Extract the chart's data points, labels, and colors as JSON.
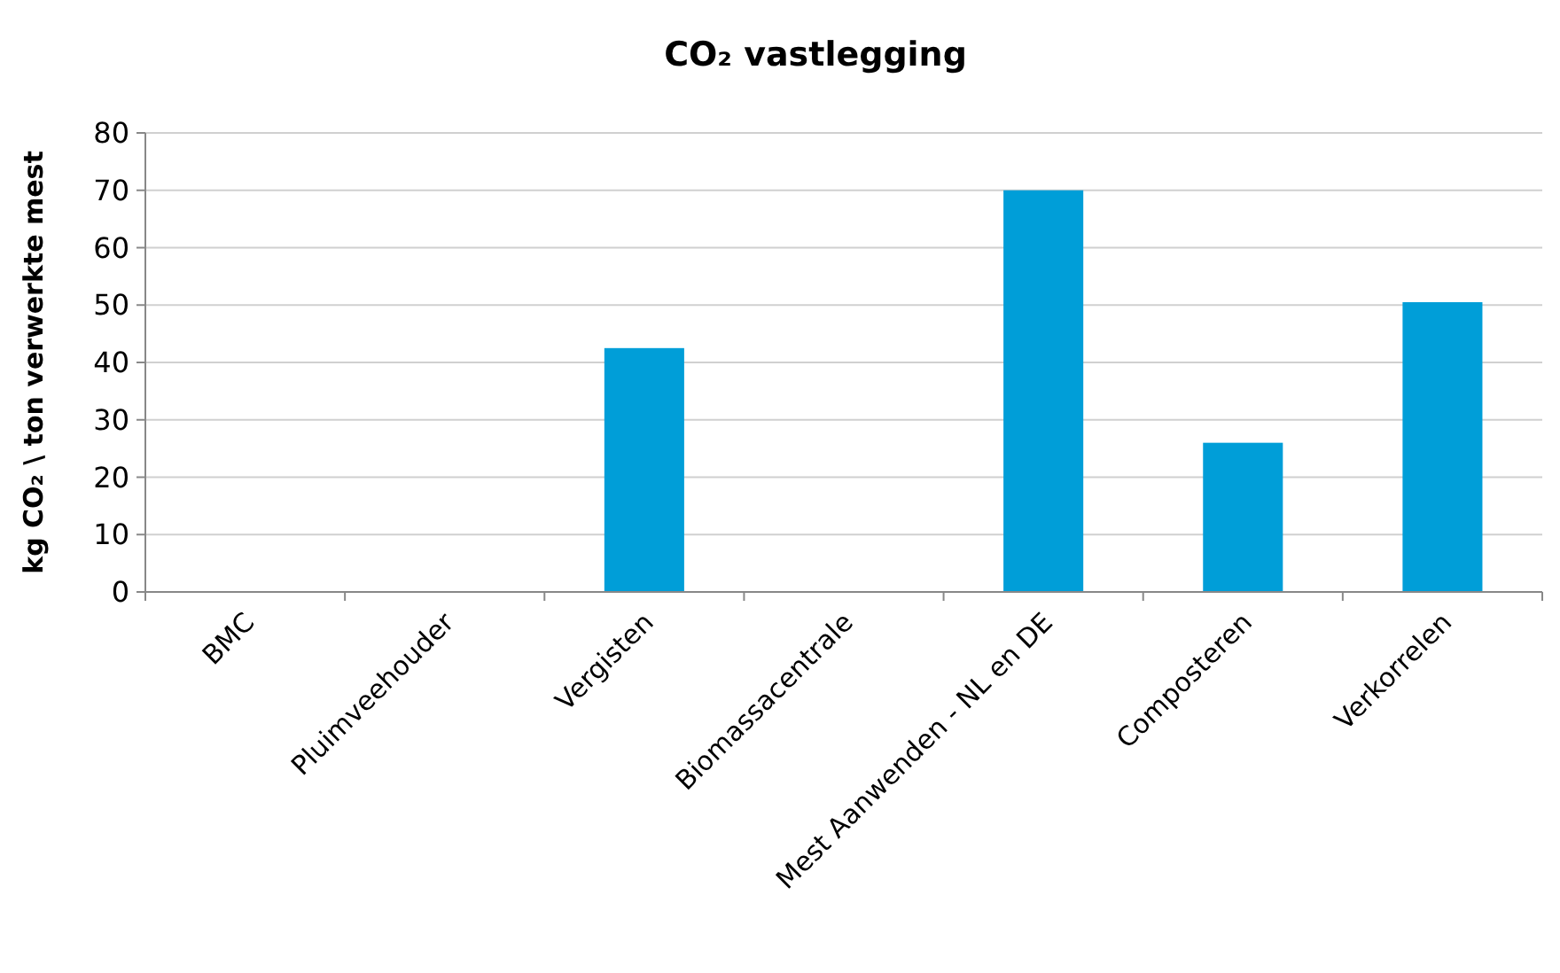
{
  "chart_data": {
    "type": "bar",
    "title": "CO₂ vastlegging",
    "ylabel": "kg CO₂ \\ ton verwerkte mest",
    "categories": [
      "BMC",
      "Pluimveehouder",
      "Vergisten",
      "Biomassacentrale",
      "Mest Aanwenden - NL en DE",
      "Composteren",
      "Verkorrelen"
    ],
    "values": [
      0,
      0,
      42.5,
      0,
      70,
      26,
      50.5
    ],
    "color": "#009ed8",
    "ylim": [
      0,
      80
    ],
    "yticks": [
      0,
      10,
      20,
      30,
      40,
      50,
      60,
      70,
      80
    ],
    "grid": "y"
  }
}
